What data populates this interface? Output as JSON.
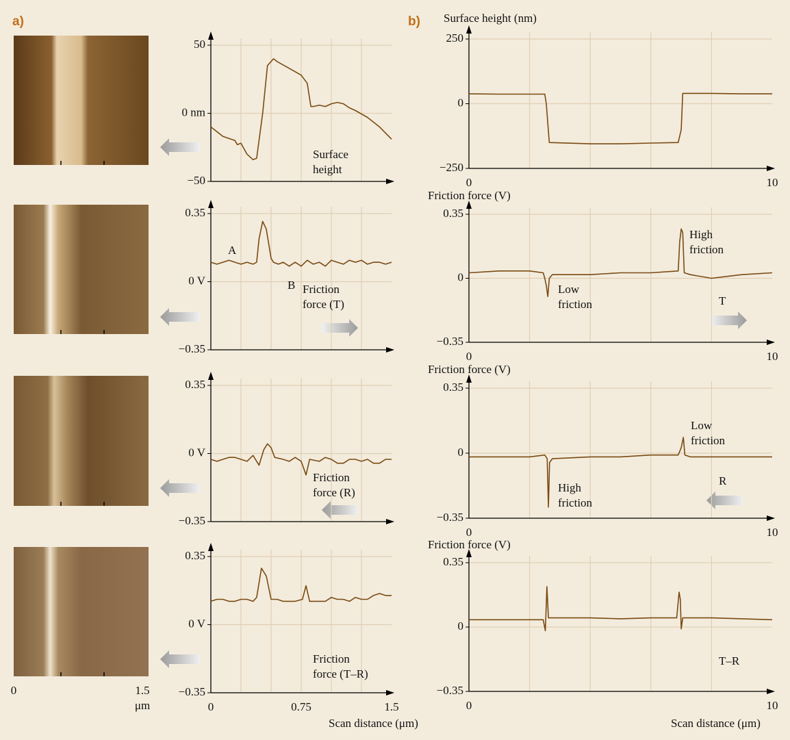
{
  "panels": [
    "a)",
    "b)"
  ],
  "scan_images": {
    "xticks": [
      0,
      1.5
    ],
    "xlabel": "μm"
  },
  "chart_data": [
    {
      "type": "line",
      "color": "#7a4a12",
      "xlim": [
        0,
        1.5
      ],
      "ylim": [
        -50,
        50
      ],
      "yticks": [
        {
          "value": -50,
          "label": "−50"
        },
        {
          "value": 0,
          "label": "0 nm"
        },
        50
      ],
      "xgrid": [
        0.25,
        0.5,
        0.75,
        1,
        1.25
      ],
      "annotations": [
        "Surface height"
      ],
      "x": [
        0,
        0.1,
        0.2,
        0.22,
        0.25,
        0.3,
        0.35,
        0.38,
        0.43,
        0.47,
        0.52,
        0.55,
        0.65,
        0.75,
        0.8,
        0.83,
        0.85,
        0.9,
        0.95,
        1.0,
        1.05,
        1.1,
        1.15,
        1.2,
        1.3,
        1.4,
        1.5
      ],
      "values": [
        -10,
        -17,
        -20,
        -23,
        -22,
        -30,
        -34,
        -33,
        0,
        35,
        40,
        38,
        33,
        28,
        22,
        5,
        5,
        6,
        5,
        7,
        8,
        7,
        4,
        2,
        -3,
        -10,
        -19
      ]
    },
    {
      "type": "line",
      "color": "#7a4a12",
      "xlim": [
        0,
        1.5
      ],
      "ylim": [
        -0.35,
        0.35
      ],
      "yticks": [
        {
          "value": -0.35,
          "label": "−0.35"
        },
        {
          "value": 0,
          "label": "0 V"
        },
        0.35
      ],
      "xgrid": [
        0.25,
        0.5,
        0.75,
        1,
        1.25
      ],
      "annotations": [
        "A",
        "B",
        "Friction force (T)"
      ],
      "x": [
        0,
        0.05,
        0.1,
        0.15,
        0.2,
        0.25,
        0.3,
        0.35,
        0.38,
        0.4,
        0.43,
        0.46,
        0.5,
        0.52,
        0.56,
        0.6,
        0.65,
        0.7,
        0.75,
        0.8,
        0.85,
        0.9,
        0.95,
        1.0,
        1.05,
        1.1,
        1.15,
        1.2,
        1.25,
        1.3,
        1.35,
        1.4,
        1.45,
        1.5
      ],
      "values": [
        0.1,
        0.09,
        0.1,
        0.11,
        0.1,
        0.09,
        0.1,
        0.09,
        0.1,
        0.22,
        0.31,
        0.27,
        0.12,
        0.1,
        0.09,
        0.1,
        0.08,
        0.1,
        0.08,
        0.11,
        0.09,
        0.1,
        0.08,
        0.11,
        0.1,
        0.09,
        0.11,
        0.1,
        0.11,
        0.09,
        0.1,
        0.1,
        0.09,
        0.1
      ]
    },
    {
      "type": "line",
      "color": "#7a4a12",
      "xlim": [
        0,
        1.5
      ],
      "ylim": [
        -0.35,
        0.35
      ],
      "yticks": [
        {
          "value": -0.35,
          "label": "−0.35"
        },
        {
          "value": 0,
          "label": "0 V"
        },
        0.35
      ],
      "xgrid": [
        0.25,
        0.5,
        0.75,
        1,
        1.25
      ],
      "annotations": [
        "Friction force (R)"
      ],
      "x": [
        0,
        0.05,
        0.1,
        0.15,
        0.2,
        0.25,
        0.3,
        0.35,
        0.4,
        0.44,
        0.47,
        0.5,
        0.53,
        0.6,
        0.65,
        0.7,
        0.75,
        0.79,
        0.82,
        0.9,
        0.95,
        1.0,
        1.05,
        1.1,
        1.15,
        1.2,
        1.25,
        1.3,
        1.35,
        1.4,
        1.45,
        1.5
      ],
      "values": [
        -0.03,
        -0.04,
        -0.03,
        -0.02,
        -0.02,
        -0.03,
        -0.04,
        -0.01,
        -0.06,
        0.02,
        0.05,
        0.03,
        -0.02,
        -0.03,
        -0.04,
        -0.02,
        -0.04,
        -0.11,
        -0.03,
        -0.04,
        -0.02,
        -0.03,
        -0.05,
        -0.05,
        -0.03,
        -0.03,
        -0.04,
        -0.03,
        -0.05,
        -0.05,
        -0.03,
        -0.03
      ]
    },
    {
      "type": "line",
      "color": "#7a4a12",
      "xlim": [
        0,
        1.5
      ],
      "ylim": [
        -0.35,
        0.35
      ],
      "yticks": [
        {
          "value": -0.35,
          "label": "−0.35"
        },
        {
          "value": 0,
          "label": "0 V"
        },
        0.35
      ],
      "xticks": [
        0,
        0.75,
        1.5
      ],
      "xgrid": [
        0.25,
        0.5,
        0.75,
        1,
        1.25
      ],
      "xlabel": "Scan distance (μm)",
      "annotations": [
        "Friction force (T–R)"
      ],
      "x": [
        0,
        0.05,
        0.1,
        0.15,
        0.2,
        0.25,
        0.3,
        0.35,
        0.38,
        0.42,
        0.46,
        0.5,
        0.55,
        0.6,
        0.65,
        0.7,
        0.76,
        0.79,
        0.82,
        0.9,
        0.95,
        1.0,
        1.05,
        1.1,
        1.15,
        1.2,
        1.25,
        1.3,
        1.35,
        1.4,
        1.45,
        1.5
      ],
      "values": [
        0.12,
        0.13,
        0.13,
        0.12,
        0.12,
        0.13,
        0.13,
        0.12,
        0.14,
        0.29,
        0.25,
        0.13,
        0.13,
        0.12,
        0.12,
        0.12,
        0.13,
        0.2,
        0.12,
        0.12,
        0.12,
        0.14,
        0.13,
        0.13,
        0.12,
        0.14,
        0.13,
        0.13,
        0.15,
        0.16,
        0.15,
        0.15
      ]
    },
    {
      "type": "line",
      "color": "#7a4a12",
      "ylabel": "Surface height (nm)",
      "xlim": [
        0,
        10
      ],
      "ylim": [
        -250,
        250
      ],
      "yticks": [
        {
          "value": -250,
          "label": "−250"
        },
        0,
        250
      ],
      "xticks": [
        0,
        10
      ],
      "xgrid": [
        2,
        4,
        6,
        8
      ],
      "annotations": [],
      "x": [
        0,
        1,
        2,
        2.5,
        2.55,
        2.65,
        4,
        5,
        6,
        6.9,
        7.0,
        7.05,
        8,
        9,
        10
      ],
      "values": [
        38,
        37,
        37,
        37,
        0,
        -150,
        -155,
        -155,
        -152,
        -150,
        -100,
        40,
        40,
        38,
        38
      ]
    },
    {
      "type": "line",
      "color": "#7a4a12",
      "ylabel": "Friction force (V)",
      "xlim": [
        0,
        10
      ],
      "ylim": [
        -0.35,
        0.35
      ],
      "yticks": [
        {
          "value": -0.35,
          "label": "−0.35"
        },
        0,
        0.35
      ],
      "xticks": [
        0,
        10
      ],
      "xgrid": [
        2,
        4,
        6,
        8
      ],
      "annotations": [
        "High friction",
        "Low friction",
        "T"
      ],
      "x": [
        0,
        1,
        2,
        2.45,
        2.5,
        2.55,
        2.6,
        2.65,
        2.75,
        4,
        5,
        6,
        6.9,
        6.95,
        7.0,
        7.05,
        7.1,
        7.3,
        8,
        8.5,
        9,
        10
      ],
      "values": [
        0.03,
        0.04,
        0.04,
        0.03,
        0.0,
        -0.04,
        -0.1,
        0.0,
        0.02,
        0.02,
        0.03,
        0.03,
        0.04,
        0.2,
        0.27,
        0.25,
        0.03,
        0.02,
        0.0,
        0.01,
        0.02,
        0.03
      ]
    },
    {
      "type": "line",
      "color": "#7a4a12",
      "ylabel": "Friction force (V)",
      "xlim": [
        0,
        10
      ],
      "ylim": [
        -0.35,
        0.35
      ],
      "yticks": [
        {
          "value": -0.35,
          "label": "−0.35"
        },
        0,
        0.35
      ],
      "xticks": [
        0,
        10
      ],
      "xgrid": [
        2,
        4,
        6,
        8
      ],
      "annotations": [
        "High friction",
        "Low friction",
        "R"
      ],
      "x": [
        0,
        1,
        2,
        2.5,
        2.58,
        2.62,
        2.66,
        2.75,
        4,
        5,
        6,
        6.9,
        7.0,
        7.07,
        7.12,
        7.3,
        8,
        9,
        10
      ],
      "values": [
        -0.02,
        -0.02,
        -0.02,
        -0.01,
        -0.03,
        -0.29,
        -0.05,
        -0.03,
        -0.02,
        -0.02,
        -0.01,
        -0.01,
        0.03,
        0.085,
        -0.01,
        -0.02,
        -0.02,
        -0.02,
        -0.02
      ]
    },
    {
      "type": "line",
      "color": "#7a4a12",
      "ylabel": "Friction force (V)",
      "xlabel": "Scan distance (μm)",
      "xlim": [
        0,
        10
      ],
      "ylim": [
        -0.35,
        0.35
      ],
      "yticks": [
        {
          "value": -0.35,
          "label": "−0.35"
        },
        0,
        0.35
      ],
      "xticks": [
        0,
        10
      ],
      "xgrid": [
        2,
        4,
        6,
        8
      ],
      "annotations": [
        "T–R"
      ],
      "x": [
        0,
        1,
        2,
        2.45,
        2.52,
        2.57,
        2.62,
        3,
        4,
        5,
        6,
        6.85,
        6.93,
        6.97,
        7.0,
        7.05,
        8,
        9,
        10
      ],
      "values": [
        0.04,
        0.04,
        0.04,
        0.04,
        -0.02,
        0.22,
        0.05,
        0.05,
        0.05,
        0.045,
        0.05,
        0.05,
        0.19,
        0.15,
        -0.01,
        0.05,
        0.05,
        0.045,
        0.04
      ]
    }
  ]
}
